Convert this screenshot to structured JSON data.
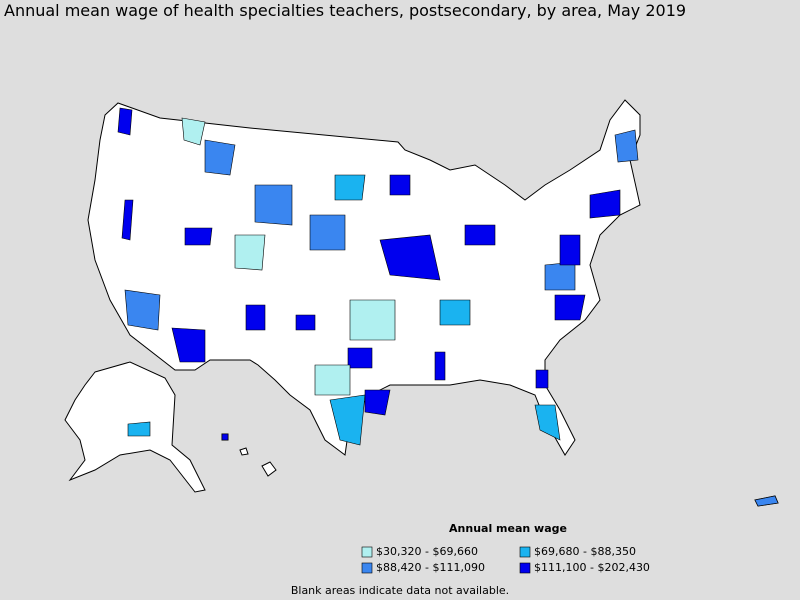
{
  "title": "Annual mean wage of health specialties teachers, postsecondary, by area, May 2019",
  "legend": {
    "title": "Annual mean wage",
    "items": [
      {
        "label": "$30,320 - $69,660",
        "color": "#b0f0f0"
      },
      {
        "label": "$69,680 - $88,350",
        "color": "#1ab3f0"
      },
      {
        "label": "$88,420 - $111,090",
        "color": "#3a86f0"
      },
      {
        "label": "$111,100 - $202,430",
        "color": "#0000ee"
      }
    ]
  },
  "footnote": "Blank areas indicate data not available."
}
